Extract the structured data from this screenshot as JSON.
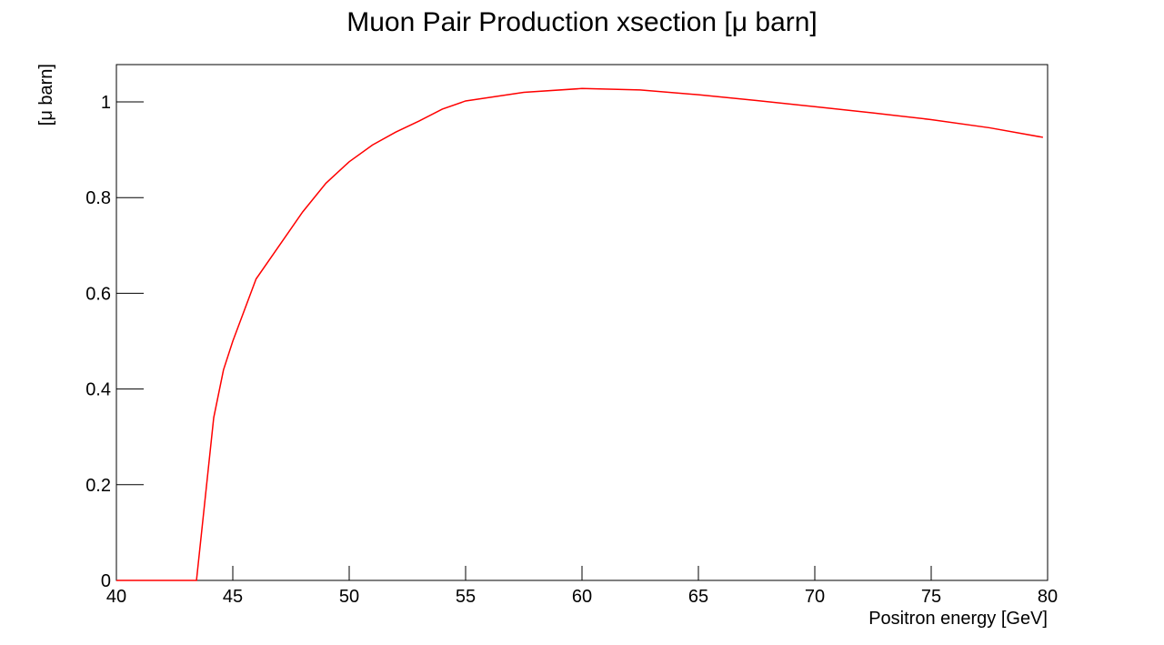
{
  "chart_data": {
    "type": "line",
    "title": "Muon Pair Production xsection [μ barn]",
    "x_label": "Positron energy [GeV]",
    "y_label": "[μ barn]",
    "xlim": [
      40,
      80
    ],
    "ylim": [
      0,
      1.078
    ],
    "xticks": [
      40,
      45,
      50,
      55,
      60,
      65,
      70,
      75,
      80
    ],
    "yticks": [
      0,
      0.2,
      0.4,
      0.6,
      0.8,
      1
    ],
    "x": [
      40,
      43.44,
      44.18,
      44.6,
      45,
      46,
      47,
      48,
      49,
      50,
      51,
      52,
      53,
      54,
      55,
      57.5,
      60,
      62.5,
      65,
      67.5,
      70,
      72.5,
      75,
      77.5,
      79.8
    ],
    "series": [
      {
        "color": "#ff0000",
        "values": [
          0,
          0,
          0.34,
          0.44,
          0.5,
          0.63,
          0.7,
          0.77,
          0.83,
          0.875,
          0.91,
          0.937,
          0.96,
          0.985,
          1.002,
          1.02,
          1.028,
          1.025,
          1.015,
          1.003,
          0.99,
          0.977,
          0.963,
          0.946,
          0.926
        ]
      }
    ]
  }
}
